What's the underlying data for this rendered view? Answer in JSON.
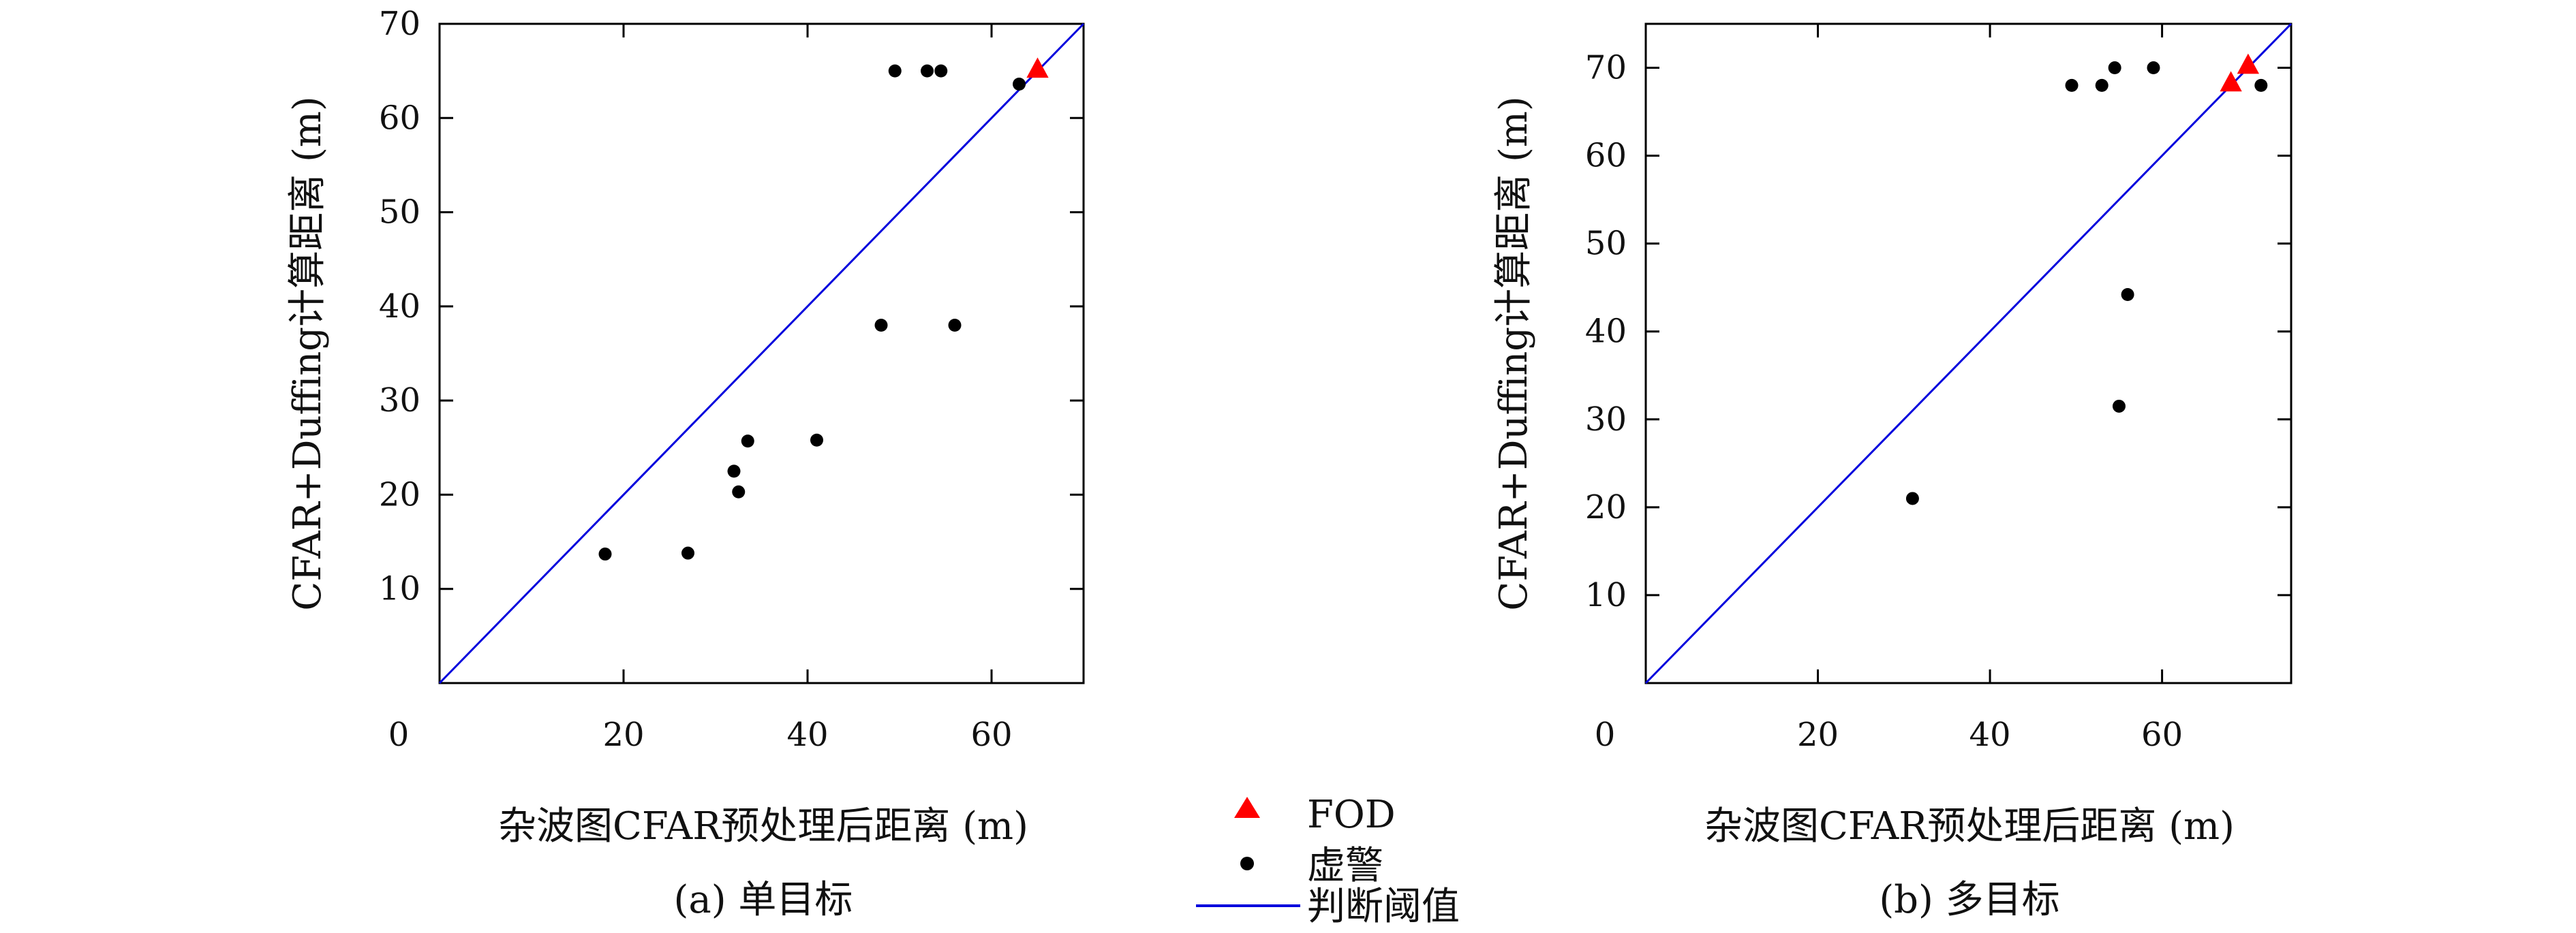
{
  "chart_data": [
    {
      "type": "scatter",
      "caption": "(a) 单目标",
      "xlabel": "杂波图CFAR预处理后距离 (m)",
      "ylabel": "CFAR+Duffing计算距离 (m)",
      "xlim": [
        0,
        70
      ],
      "ylim": [
        0,
        70
      ],
      "xticks": [
        20,
        40,
        60
      ],
      "yticks": [
        10,
        20,
        30,
        40,
        50,
        60,
        70
      ],
      "origin_label": "0",
      "series": [
        {
          "name": "FOD",
          "marker": "triangle",
          "color": "#ff0000",
          "points": [
            [
              65,
              65.2
            ]
          ]
        },
        {
          "name": "虚警",
          "marker": "dot",
          "color": "#000000",
          "points": [
            [
              18,
              13.7
            ],
            [
              27,
              13.8
            ],
            [
              32,
              22.5
            ],
            [
              32.5,
              20.3
            ],
            [
              33.5,
              25.7
            ],
            [
              41,
              25.8
            ],
            [
              48,
              38
            ],
            [
              56,
              38
            ],
            [
              49.5,
              65
            ],
            [
              53,
              65
            ],
            [
              54.5,
              65
            ],
            [
              63,
              63.6
            ]
          ]
        }
      ],
      "threshold": {
        "name": "判断阈值",
        "color": "#0000dd",
        "from": [
          0,
          0
        ],
        "to": [
          70,
          70
        ]
      }
    },
    {
      "type": "scatter",
      "caption": "(b) 多目标",
      "xlabel": "杂波图CFAR预处理后距离 (m)",
      "ylabel": "CFAR+Duffing计算距离 (m)",
      "xlim": [
        0,
        75
      ],
      "ylim": [
        0,
        75
      ],
      "xticks": [
        20,
        40,
        60
      ],
      "yticks": [
        10,
        20,
        30,
        40,
        50,
        60,
        70
      ],
      "origin_label": "0",
      "series": [
        {
          "name": "FOD",
          "marker": "triangle",
          "color": "#ff0000",
          "points": [
            [
              68,
              68.3
            ],
            [
              70,
              70.3
            ]
          ]
        },
        {
          "name": "虚警",
          "marker": "dot",
          "color": "#000000",
          "points": [
            [
              31,
              21
            ],
            [
              49.5,
              68
            ],
            [
              53,
              68
            ],
            [
              54.5,
              70
            ],
            [
              59,
              70
            ],
            [
              71.5,
              68
            ],
            [
              55,
              31.5
            ],
            [
              56,
              44.2
            ]
          ]
        }
      ],
      "threshold": {
        "name": "判断阈值",
        "color": "#0000dd",
        "from": [
          0,
          0
        ],
        "to": [
          75,
          75
        ]
      }
    }
  ],
  "legend": {
    "items": [
      {
        "label": "FOD",
        "marker": "triangle",
        "color": "#ff0000"
      },
      {
        "label": "虚警",
        "marker": "dot",
        "color": "#000000"
      },
      {
        "label": "判断阈值",
        "marker": "line",
        "color": "#0000dd"
      }
    ]
  }
}
